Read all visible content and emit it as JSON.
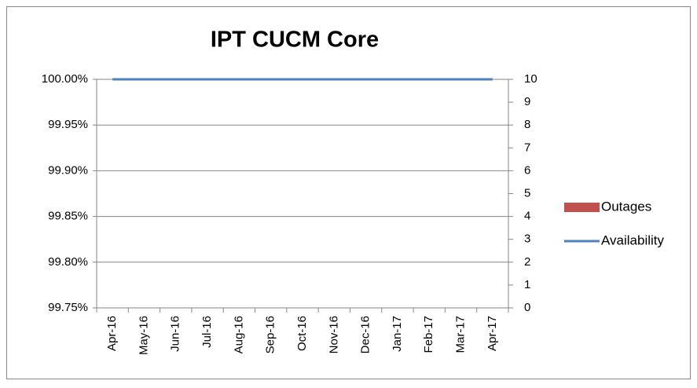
{
  "chart_data": {
    "type": "combo",
    "title": "IPT CUCM Core",
    "categories": [
      "Apr-16",
      "May-16",
      "Jun-16",
      "Jul-16",
      "Aug-16",
      "Sep-16",
      "Oct-16",
      "Nov-16",
      "Dec-16",
      "Jan-17",
      "Feb-17",
      "Mar-17",
      "Apr-17"
    ],
    "series": [
      {
        "name": "Outages",
        "type": "bar",
        "axis": "y2",
        "color": "#c0504d",
        "values": [
          0,
          0,
          0,
          0,
          0,
          0,
          0,
          0,
          0,
          0,
          0,
          0,
          0
        ]
      },
      {
        "name": "Availability",
        "type": "line",
        "axis": "y",
        "color": "#4f81bd",
        "values": [
          100,
          100,
          100,
          100,
          100,
          100,
          100,
          100,
          100,
          100,
          100,
          100,
          100
        ]
      }
    ],
    "ylim": [
      99.75,
      100
    ],
    "yticks": [
      {
        "value": 99.75,
        "label": "99.75%"
      },
      {
        "value": 99.8,
        "label": "99.80%"
      },
      {
        "value": 99.85,
        "label": "99.85%"
      },
      {
        "value": 99.9,
        "label": "99.90%"
      },
      {
        "value": 99.95,
        "label": "99.95%"
      },
      {
        "value": 100,
        "label": "100.00%"
      }
    ],
    "y2lim": [
      0,
      10
    ],
    "y2ticks": [
      0,
      1,
      2,
      3,
      4,
      5,
      6,
      7,
      8,
      9,
      10
    ],
    "grid": true,
    "legend": "right"
  }
}
